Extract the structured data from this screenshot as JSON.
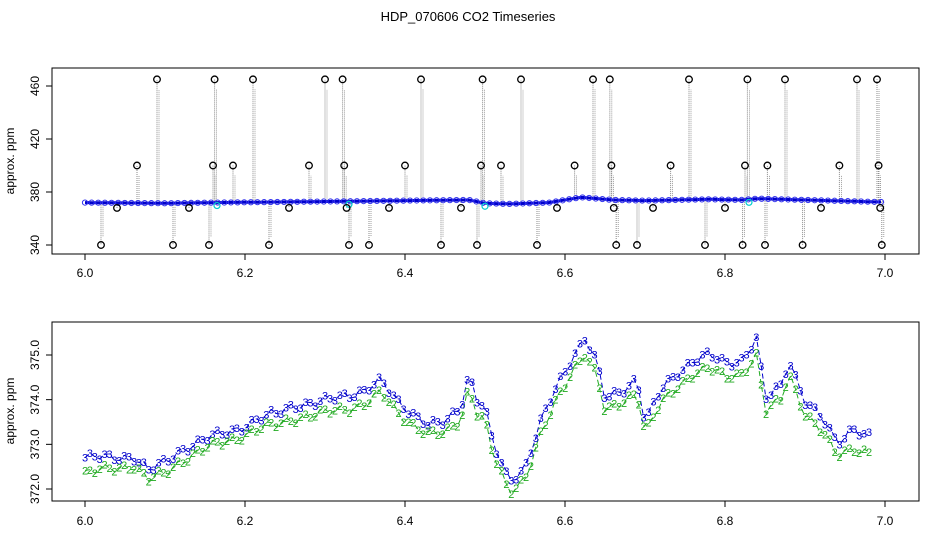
{
  "title": "HDP_070606  CO2 Timeseries",
  "chart_data": [
    {
      "type": "scatter",
      "ylabel": "approx. ppm",
      "xlim": [
        6.0,
        7.0
      ],
      "ylim": [
        340,
        470
      ],
      "x_ticks": [
        "6.0",
        "6.2",
        "6.4",
        "6.6",
        "6.8",
        "7.0"
      ],
      "y_ticks": [
        "340",
        "380",
        "420",
        "460"
      ],
      "baseline": [
        [
          6.0,
          372.0
        ],
        [
          6.1,
          371.5
        ],
        [
          6.16,
          372.0
        ],
        [
          6.25,
          372.5
        ],
        [
          6.33,
          373.0
        ],
        [
          6.4,
          373.5
        ],
        [
          6.48,
          374.0
        ],
        [
          6.5,
          371.5
        ],
        [
          6.53,
          371.0
        ],
        [
          6.58,
          372.0
        ],
        [
          6.62,
          376.0
        ],
        [
          6.66,
          374.0
        ],
        [
          6.7,
          373.5
        ],
        [
          6.78,
          374.5
        ],
        [
          6.82,
          374.0
        ],
        [
          6.84,
          375.0
        ],
        [
          6.9,
          374.0
        ],
        [
          6.99,
          372.5
        ]
      ],
      "spikes": [
        {
          "x": 6.02,
          "y": 340
        },
        {
          "x": 6.04,
          "y": 368
        },
        {
          "x": 6.065,
          "y": 400
        },
        {
          "x": 6.09,
          "y": 465
        },
        {
          "x": 6.11,
          "y": 340
        },
        {
          "x": 6.13,
          "y": 368
        },
        {
          "x": 6.155,
          "y": 340
        },
        {
          "x": 6.16,
          "y": 400
        },
        {
          "x": 6.162,
          "y": 465
        },
        {
          "x": 6.185,
          "y": 400
        },
        {
          "x": 6.21,
          "y": 465
        },
        {
          "x": 6.23,
          "y": 340
        },
        {
          "x": 6.255,
          "y": 368
        },
        {
          "x": 6.28,
          "y": 400
        },
        {
          "x": 6.3,
          "y": 465
        },
        {
          "x": 6.322,
          "y": 465
        },
        {
          "x": 6.324,
          "y": 400
        },
        {
          "x": 6.327,
          "y": 368
        },
        {
          "x": 6.33,
          "y": 340
        },
        {
          "x": 6.355,
          "y": 340
        },
        {
          "x": 6.38,
          "y": 368
        },
        {
          "x": 6.4,
          "y": 400
        },
        {
          "x": 6.42,
          "y": 465
        },
        {
          "x": 6.445,
          "y": 340
        },
        {
          "x": 6.47,
          "y": 368
        },
        {
          "x": 6.49,
          "y": 340
        },
        {
          "x": 6.495,
          "y": 400
        },
        {
          "x": 6.497,
          "y": 465
        },
        {
          "x": 6.52,
          "y": 400
        },
        {
          "x": 6.545,
          "y": 465
        },
        {
          "x": 6.565,
          "y": 340
        },
        {
          "x": 6.59,
          "y": 368
        },
        {
          "x": 6.612,
          "y": 400
        },
        {
          "x": 6.635,
          "y": 465
        },
        {
          "x": 6.656,
          "y": 465
        },
        {
          "x": 6.658,
          "y": 400
        },
        {
          "x": 6.661,
          "y": 368
        },
        {
          "x": 6.664,
          "y": 340
        },
        {
          "x": 6.69,
          "y": 340
        },
        {
          "x": 6.71,
          "y": 368
        },
        {
          "x": 6.732,
          "y": 400
        },
        {
          "x": 6.755,
          "y": 465
        },
        {
          "x": 6.775,
          "y": 340
        },
        {
          "x": 6.8,
          "y": 368
        },
        {
          "x": 6.822,
          "y": 340
        },
        {
          "x": 6.825,
          "y": 400
        },
        {
          "x": 6.828,
          "y": 465
        },
        {
          "x": 6.85,
          "y": 340
        },
        {
          "x": 6.853,
          "y": 400
        },
        {
          "x": 6.875,
          "y": 465
        },
        {
          "x": 6.897,
          "y": 340
        },
        {
          "x": 6.92,
          "y": 368
        },
        {
          "x": 6.943,
          "y": 400
        },
        {
          "x": 6.965,
          "y": 465
        },
        {
          "x": 6.99,
          "y": 465
        },
        {
          "x": 6.992,
          "y": 400
        },
        {
          "x": 6.994,
          "y": 368
        },
        {
          "x": 6.996,
          "y": 340
        }
      ],
      "colors": {
        "line": "#0000cc",
        "marker": "#3333ee",
        "cyan": "#00cccc",
        "spike": "#888888",
        "circle": "#000000"
      }
    },
    {
      "type": "line",
      "ylabel": "approx. ppm",
      "xlim": [
        6.0,
        7.0
      ],
      "ylim": [
        372.0,
        375.5
      ],
      "x_ticks": [
        "6.0",
        "6.2",
        "6.4",
        "6.6",
        "6.8",
        "7.0"
      ],
      "y_ticks": [
        "372.0",
        "373.0",
        "374.0",
        "375.0"
      ],
      "series": [
        {
          "marker": "3",
          "color": "#0000cc",
          "points": [
            [
              6.0,
              372.7
            ],
            [
              6.03,
              372.7
            ],
            [
              6.06,
              372.75
            ],
            [
              6.08,
              372.4
            ],
            [
              6.1,
              372.6
            ],
            [
              6.12,
              372.9
            ],
            [
              6.15,
              373.1
            ],
            [
              6.18,
              373.3
            ],
            [
              6.21,
              373.5
            ],
            [
              6.24,
              373.7
            ],
            [
              6.26,
              373.9
            ],
            [
              6.29,
              373.9
            ],
            [
              6.32,
              374.1
            ],
            [
              6.35,
              374.2
            ],
            [
              6.37,
              374.4
            ],
            [
              6.39,
              374.0
            ],
            [
              6.41,
              373.7
            ],
            [
              6.43,
              373.4
            ],
            [
              6.45,
              373.5
            ],
            [
              6.47,
              373.9
            ],
            [
              6.48,
              374.6
            ],
            [
              6.49,
              374.0
            ],
            [
              6.5,
              373.8
            ],
            [
              6.51,
              373.0
            ],
            [
              6.53,
              372.2
            ],
            [
              6.55,
              372.5
            ],
            [
              6.57,
              373.5
            ],
            [
              6.59,
              374.3
            ],
            [
              6.61,
              375.0
            ],
            [
              6.625,
              375.4
            ],
            [
              6.64,
              374.8
            ],
            [
              6.65,
              374.0
            ],
            [
              6.67,
              374.2
            ],
            [
              6.69,
              374.5
            ],
            [
              6.7,
              373.5
            ],
            [
              6.72,
              374.2
            ],
            [
              6.74,
              374.6
            ],
            [
              6.76,
              374.9
            ],
            [
              6.78,
              375.0
            ],
            [
              6.8,
              374.8
            ],
            [
              6.82,
              374.9
            ],
            [
              6.84,
              375.4
            ],
            [
              6.85,
              374.0
            ],
            [
              6.87,
              374.3
            ],
            [
              6.88,
              374.9
            ],
            [
              6.9,
              374.0
            ],
            [
              6.92,
              373.6
            ],
            [
              6.94,
              373.0
            ],
            [
              6.96,
              373.4
            ],
            [
              6.98,
              373.2
            ]
          ]
        },
        {
          "marker": "2",
          "color": "#22aa22",
          "points": [
            [
              6.0,
              372.35
            ],
            [
              6.03,
              372.45
            ],
            [
              6.06,
              372.55
            ],
            [
              6.08,
              372.2
            ],
            [
              6.1,
              372.35
            ],
            [
              6.12,
              372.65
            ],
            [
              6.15,
              372.9
            ],
            [
              6.18,
              373.1
            ],
            [
              6.21,
              373.3
            ],
            [
              6.24,
              373.45
            ],
            [
              6.26,
              373.6
            ],
            [
              6.29,
              373.65
            ],
            [
              6.32,
              373.8
            ],
            [
              6.35,
              373.9
            ],
            [
              6.37,
              374.15
            ],
            [
              6.39,
              373.75
            ],
            [
              6.41,
              373.45
            ],
            [
              6.43,
              373.2
            ],
            [
              6.45,
              373.25
            ],
            [
              6.47,
              373.6
            ],
            [
              6.48,
              374.3
            ],
            [
              6.49,
              373.7
            ],
            [
              6.5,
              373.5
            ],
            [
              6.51,
              372.75
            ],
            [
              6.53,
              371.95
            ],
            [
              6.55,
              372.25
            ],
            [
              6.57,
              373.2
            ],
            [
              6.59,
              374.0
            ],
            [
              6.61,
              374.7
            ],
            [
              6.625,
              375.05
            ],
            [
              6.64,
              374.5
            ],
            [
              6.65,
              373.7
            ],
            [
              6.67,
              373.95
            ],
            [
              6.69,
              374.2
            ],
            [
              6.7,
              373.25
            ],
            [
              6.72,
              373.9
            ],
            [
              6.74,
              374.3
            ],
            [
              6.76,
              374.6
            ],
            [
              6.78,
              374.7
            ],
            [
              6.8,
              374.5
            ],
            [
              6.82,
              374.6
            ],
            [
              6.84,
              375.0
            ],
            [
              6.85,
              373.7
            ],
            [
              6.87,
              374.0
            ],
            [
              6.88,
              374.6
            ],
            [
              6.9,
              373.7
            ],
            [
              6.92,
              373.3
            ],
            [
              6.94,
              372.75
            ],
            [
              6.96,
              372.95
            ],
            [
              6.98,
              372.8
            ]
          ]
        }
      ]
    }
  ]
}
